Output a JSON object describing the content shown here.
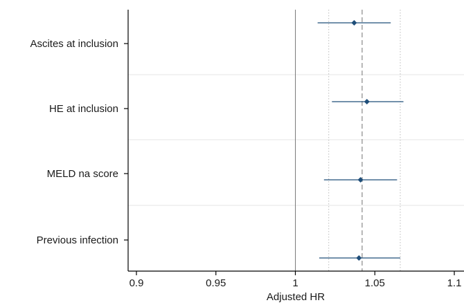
{
  "chart_data": {
    "type": "forest",
    "xlabel": "Adjusted HR",
    "xlim": [
      0.9,
      1.1
    ],
    "xticks": [
      0.9,
      0.95,
      1,
      1.05,
      1.1
    ],
    "xtick_labels": [
      "0.9",
      "0.95",
      "1",
      "1.05",
      "1.1"
    ],
    "reference_line": 1,
    "overall_estimate": 1.042,
    "overall_ci": [
      1.021,
      1.066
    ],
    "categories": [
      "Ascites at inclusion",
      "HE at inclusion",
      "MELD na score",
      "Previous infection"
    ],
    "estimates": [
      1.037,
      1.045,
      1.041,
      1.04
    ],
    "ci_lower": [
      1.014,
      1.023,
      1.018,
      1.015
    ],
    "ci_upper": [
      1.06,
      1.068,
      1.064,
      1.066
    ],
    "colors": {
      "marker": "#1f4e79",
      "overall_line": "#888888",
      "ci_dotted": "#bbbbbb",
      "reference": "#7a7a7a",
      "grid": "#e6e6e6",
      "axis": "#000000"
    }
  }
}
